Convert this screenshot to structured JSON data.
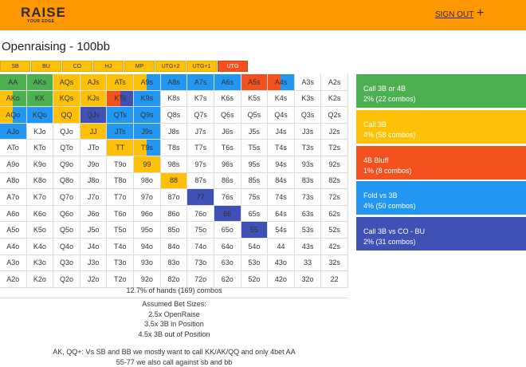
{
  "header": {
    "logo": "RAISE",
    "logo_tagline": "YOUR EDGE",
    "sign_out": "SIGN OUT",
    "menu": "+"
  },
  "title": "Openraising - 100bb",
  "tabs": [
    "SB",
    "BU",
    "CO",
    "HJ",
    "MP",
    "UTG+2",
    "UTG+1",
    "UTG"
  ],
  "active_tab": 7,
  "grid": [
    [
      "AA",
      "AKs",
      "AQs",
      "AJs",
      "ATs",
      "A9s",
      "A8s",
      "A7s",
      "A6s",
      "A5s",
      "A4s",
      "A3s",
      "A2s"
    ],
    [
      "AKo",
      "KK",
      "KQs",
      "KJs",
      "KTs",
      "K9s",
      "K8s",
      "K7s",
      "K6s",
      "K5s",
      "K4s",
      "K3s",
      "K2s"
    ],
    [
      "AQo",
      "KQo",
      "QQ",
      "QJs",
      "QTs",
      "Q9s",
      "Q8s",
      "Q7s",
      "Q6s",
      "Q5s",
      "Q4s",
      "Q3s",
      "Q2s"
    ],
    [
      "AJo",
      "KJo",
      "QJo",
      "JJ",
      "JTs",
      "J9s",
      "J8s",
      "J7s",
      "J6s",
      "J5s",
      "J4s",
      "J3s",
      "J2s"
    ],
    [
      "ATo",
      "KTo",
      "QTo",
      "JTo",
      "TT",
      "T9s",
      "T8s",
      "T7s",
      "T6s",
      "T5s",
      "T4s",
      "T3s",
      "T2s"
    ],
    [
      "A9o",
      "K9o",
      "Q9o",
      "J9o",
      "T9o",
      "99",
      "98s",
      "97s",
      "96s",
      "95s",
      "94s",
      "93s",
      "92s"
    ],
    [
      "A8o",
      "K8o",
      "Q8o",
      "J8o",
      "T8o",
      "98o",
      "88",
      "87s",
      "86s",
      "85s",
      "84s",
      "83s",
      "82s"
    ],
    [
      "A7o",
      "K7o",
      "Q7o",
      "J7o",
      "T7o",
      "97o",
      "87o",
      "77",
      "76s",
      "75s",
      "74s",
      "73s",
      "72s"
    ],
    [
      "A6o",
      "K6o",
      "Q6o",
      "J6o",
      "T6o",
      "96o",
      "86o",
      "76o",
      "66",
      "65s",
      "64s",
      "63s",
      "62s"
    ],
    [
      "A5o",
      "K5o",
      "Q5o",
      "J5o",
      "T5o",
      "95o",
      "85o",
      "75o",
      "65o",
      "55",
      "54s",
      "53s",
      "52s"
    ],
    [
      "A4o",
      "K4o",
      "Q4o",
      "J4o",
      "T4o",
      "94o",
      "84o",
      "74o",
      "64o",
      "54o",
      "44",
      "43s",
      "42s"
    ],
    [
      "A3o",
      "K3o",
      "Q3o",
      "J3o",
      "T3o",
      "93o",
      "83o",
      "73o",
      "63o",
      "53o",
      "43o",
      "33",
      "32s"
    ],
    [
      "A2o",
      "K2o",
      "Q2o",
      "J2o",
      "T2o",
      "92o",
      "82o",
      "72o",
      "62o",
      "52o",
      "42o",
      "32o",
      "22"
    ]
  ],
  "cell_colors": [
    [
      [
        "#4caf50"
      ],
      [
        "#4caf50"
      ],
      [
        "#ffc107"
      ],
      [
        "#ffc107"
      ],
      [
        "#ffc107"
      ],
      [
        "#ffc107",
        "#2196f3"
      ],
      [
        "#2196f3"
      ],
      [
        "#2196f3"
      ],
      [
        "#2196f3"
      ],
      [
        "#f4511e"
      ],
      [
        "#f4511e",
        "#2196f3"
      ],
      null,
      null
    ],
    [
      [
        "#ffc107",
        "#4caf50"
      ],
      [
        "#4caf50"
      ],
      [
        "#ffc107"
      ],
      [
        "#ffc107"
      ],
      [
        "#f4511e",
        "#3f51b5"
      ],
      [
        "#2196f3"
      ],
      null,
      null,
      null,
      null,
      null,
      null,
      null
    ],
    [
      [
        "#ffc107",
        "#2196f3"
      ],
      [
        "#2196f3"
      ],
      [
        "#ffc107"
      ],
      [
        "#3f51b5"
      ],
      [
        "#2196f3"
      ],
      [
        "#2196f3"
      ],
      null,
      null,
      null,
      null,
      null,
      null,
      null
    ],
    [
      [
        "#2196f3"
      ],
      null,
      null,
      [
        "#ffc107"
      ],
      [
        "#2196f3"
      ],
      [
        "#2196f3"
      ],
      null,
      null,
      null,
      null,
      null,
      null,
      null
    ],
    [
      null,
      null,
      null,
      null,
      [
        "#ffc107"
      ],
      [
        "#ffc107",
        "#2196f3"
      ],
      null,
      null,
      null,
      null,
      null,
      null,
      null
    ],
    [
      null,
      null,
      null,
      null,
      null,
      [
        "#ffc107"
      ],
      null,
      null,
      null,
      null,
      null,
      null,
      null
    ],
    [
      null,
      null,
      null,
      null,
      null,
      null,
      [
        "#ffc107"
      ],
      null,
      null,
      null,
      null,
      null,
      null
    ],
    [
      null,
      null,
      null,
      null,
      null,
      null,
      null,
      [
        "#3f51b5"
      ],
      null,
      null,
      null,
      null,
      null
    ],
    [
      null,
      null,
      null,
      null,
      null,
      null,
      null,
      null,
      [
        "#3f51b5"
      ],
      null,
      null,
      null,
      null
    ],
    [
      null,
      null,
      null,
      null,
      null,
      null,
      null,
      null,
      null,
      [
        "#3f51b5"
      ],
      null,
      null,
      null
    ],
    [
      null,
      null,
      null,
      null,
      null,
      null,
      null,
      null,
      null,
      null,
      null,
      null,
      null
    ],
    [
      null,
      null,
      null,
      null,
      null,
      null,
      null,
      null,
      null,
      null,
      null,
      null,
      null
    ],
    [
      null,
      null,
      null,
      null,
      null,
      null,
      null,
      null,
      null,
      null,
      null,
      null,
      null
    ]
  ],
  "legend": [
    {
      "label": "Call 3B or 4B",
      "detail": "2% (22 combos)",
      "color": "#4caf50"
    },
    {
      "label": "Call 3B",
      "detail": "4% (58 combos)",
      "color": "#ffc107"
    },
    {
      "label": "4B Bluff",
      "detail": "1% (8 combos)",
      "color": "#f4511e"
    },
    {
      "label": "Fold vs 3B",
      "detail": "4% (50 combos)",
      "color": "#2196f3"
    },
    {
      "label": "Call 3B vs CO - BU",
      "detail": "2% (31 combos)",
      "color": "#3f51b5"
    }
  ],
  "summary": "12.7% of hands (169) combos",
  "notes": [
    "Assumed Bet Sizes:",
    "2.5x OpenRaise",
    "3.5x 3B in Position",
    "4.5x 3B out of Position"
  ],
  "comments": [
    "AK, QQ+: Vs SB and BB we mostly want to call KK/AK/QQ and only 4bet AA",
    "55-77 we also call against sb and bb"
  ]
}
